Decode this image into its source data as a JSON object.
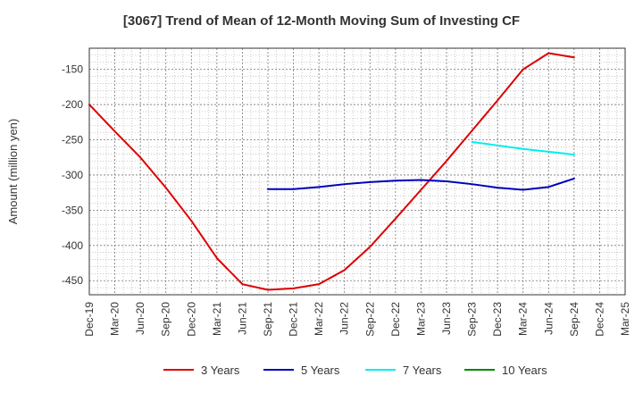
{
  "chart_data": {
    "type": "line",
    "title": "[3067]  Trend of Mean of 12-Month Moving Sum of Investing CF",
    "ylabel": "Amount (million yen)",
    "xlabel": "",
    "ylim": [
      -470,
      -120
    ],
    "yticks": [
      -150,
      -200,
      -250,
      -300,
      -350,
      -400,
      -450
    ],
    "categories": [
      "Dec-19",
      "Mar-20",
      "Jun-20",
      "Sep-20",
      "Dec-20",
      "Mar-21",
      "Jun-21",
      "Sep-21",
      "Dec-21",
      "Mar-22",
      "Jun-22",
      "Sep-22",
      "Dec-22",
      "Mar-23",
      "Jun-23",
      "Sep-23",
      "Dec-23",
      "Mar-24",
      "Jun-24",
      "Sep-24",
      "Dec-24",
      "Mar-25"
    ],
    "grid": true,
    "legend_position": "bottom",
    "series": [
      {
        "name": "3 Years",
        "color": "#dd0000",
        "values": [
          -200,
          -238,
          -275,
          -318,
          -365,
          -418,
          -455,
          -463,
          -461,
          -455,
          -435,
          -402,
          -362,
          -321,
          -280,
          -237,
          -194,
          -150,
          -127,
          -133,
          null,
          null
        ]
      },
      {
        "name": "5 Years",
        "color": "#0000bb",
        "values": [
          null,
          null,
          null,
          null,
          null,
          null,
          null,
          -320,
          -320,
          -317,
          -313,
          -310,
          -308,
          -307,
          -309,
          -313,
          -318,
          -321,
          -317,
          -305,
          null,
          null
        ]
      },
      {
        "name": "7 Years",
        "color": "#00eeee",
        "values": [
          null,
          null,
          null,
          null,
          null,
          null,
          null,
          null,
          null,
          null,
          null,
          null,
          null,
          null,
          null,
          -253,
          -258,
          -263,
          -267,
          -271,
          null,
          null
        ]
      },
      {
        "name": "10 Years",
        "color": "#008800",
        "values": [
          null,
          null,
          null,
          null,
          null,
          null,
          null,
          null,
          null,
          null,
          null,
          null,
          null,
          null,
          null,
          null,
          null,
          null,
          null,
          null,
          null,
          null
        ]
      }
    ]
  }
}
